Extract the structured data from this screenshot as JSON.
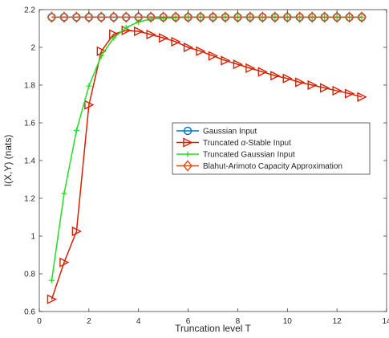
{
  "chart_data": {
    "type": "line",
    "xlabel": "Truncation level T",
    "ylabel": "I(X,Y) (nats)",
    "xlim": [
      0,
      14
    ],
    "ylim": [
      0.6,
      2.2
    ],
    "xticks": [
      0,
      2,
      4,
      6,
      8,
      10,
      12,
      14
    ],
    "yticks": [
      0.6,
      0.8,
      1,
      1.2,
      1.4,
      1.6,
      1.8,
      2,
      2.2
    ],
    "xtick_labels": [
      "0",
      "2",
      "4",
      "6",
      "8",
      "10",
      "12",
      "14"
    ],
    "ytick_labels": [
      "0.6",
      "0.8",
      "1",
      "1.2",
      "1.4",
      "1.6",
      "1.8",
      "2",
      "2.2"
    ],
    "grid": false,
    "legend_position": "center-right",
    "series": [
      {
        "name": "Gaussian Input",
        "color": "#0072BD",
        "marker": "circle",
        "x": [
          0.5,
          1,
          1.5,
          2,
          2.5,
          3,
          3.5,
          4,
          4.5,
          5,
          5.5,
          6,
          6.5,
          7,
          7.5,
          8,
          8.5,
          9,
          9.5,
          10,
          10.5,
          11,
          11.5,
          12,
          12.5,
          13
        ],
        "y": [
          2.16,
          2.16,
          2.16,
          2.16,
          2.16,
          2.16,
          2.16,
          2.16,
          2.16,
          2.16,
          2.16,
          2.16,
          2.16,
          2.16,
          2.16,
          2.16,
          2.16,
          2.16,
          2.16,
          2.16,
          2.16,
          2.16,
          2.16,
          2.16,
          2.16,
          2.16
        ]
      },
      {
        "name": "Truncated α-Stable Input",
        "name_prefix": "Truncated ",
        "name_symbol": "α",
        "name_suffix": "-Stable Input",
        "color": "#D62000",
        "marker": "triangle-right",
        "x": [
          0.5,
          1,
          1.5,
          2,
          2.5,
          3,
          3.5,
          4,
          4.5,
          5,
          5.5,
          6,
          6.5,
          7,
          7.5,
          8,
          8.5,
          9,
          9.5,
          10,
          10.5,
          11,
          11.5,
          12,
          12.5,
          13
        ],
        "y": [
          0.665,
          0.86,
          1.025,
          1.695,
          1.98,
          2.07,
          2.09,
          2.085,
          2.068,
          2.05,
          2.03,
          2.0,
          1.98,
          1.955,
          1.93,
          1.91,
          1.89,
          1.87,
          1.85,
          1.835,
          1.815,
          1.8,
          1.785,
          1.77,
          1.755,
          1.737
        ]
      },
      {
        "name": "Truncated Gaussian Input",
        "color": "#22DD22",
        "marker": "plus",
        "x": [
          0.5,
          1,
          1.5,
          2,
          2.5,
          3,
          3.5,
          4,
          4.5,
          5,
          5.5,
          6,
          6.5,
          7,
          7.5,
          8,
          8.5,
          9,
          9.5,
          10,
          10.5,
          11,
          11.5,
          12,
          12.5,
          13
        ],
        "y": [
          0.765,
          1.225,
          1.56,
          1.795,
          1.955,
          2.05,
          2.105,
          2.135,
          2.15,
          2.155,
          2.158,
          2.16,
          2.16,
          2.16,
          2.16,
          2.16,
          2.16,
          2.16,
          2.16,
          2.16,
          2.16,
          2.16,
          2.16,
          2.16,
          2.16,
          2.16
        ]
      },
      {
        "name": "Blahut-Arimoto Capacity Approximation",
        "color": "#D95319",
        "marker": "diamond",
        "x": [
          0.5,
          1,
          1.5,
          2,
          2.5,
          3,
          3.5,
          4,
          4.5,
          5,
          5.5,
          6,
          6.5,
          7,
          7.5,
          8,
          8.5,
          9,
          9.5,
          10,
          10.5,
          11,
          11.5,
          12,
          12.5,
          13
        ],
        "y": [
          2.16,
          2.16,
          2.16,
          2.16,
          2.16,
          2.16,
          2.16,
          2.16,
          2.16,
          2.16,
          2.16,
          2.16,
          2.16,
          2.16,
          2.16,
          2.16,
          2.16,
          2.16,
          2.16,
          2.16,
          2.16,
          2.16,
          2.16,
          2.16,
          2.16,
          2.16
        ]
      }
    ]
  }
}
